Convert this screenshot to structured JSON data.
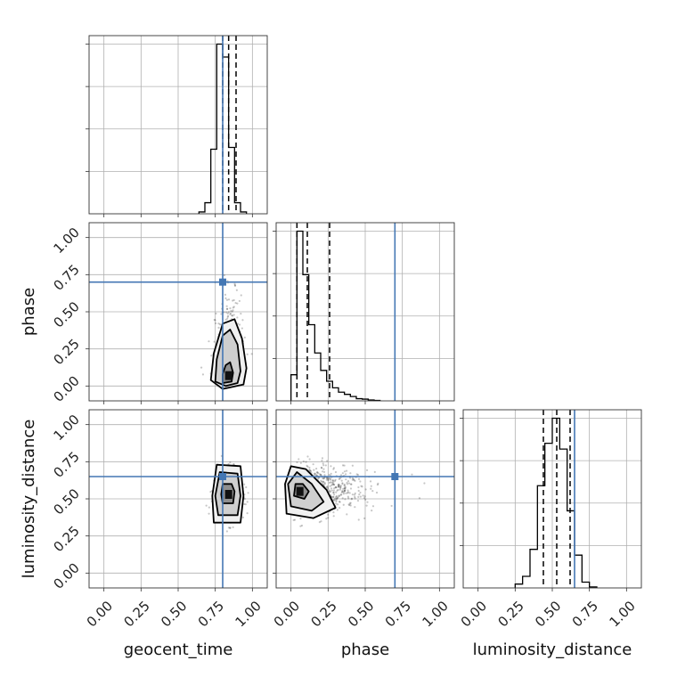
{
  "chart_data": {
    "type": "corner",
    "parameters": [
      "geocent_time",
      "phase",
      "luminosity_distance"
    ],
    "truths": [
      0.8,
      0.7,
      0.65
    ],
    "truth_color": "#4477b4",
    "contour_color": "#000000",
    "quantile_line_style": "dashed",
    "grid": true,
    "axis_ranges": {
      "geocent_time": [
        -0.1,
        1.1
      ],
      "phase": [
        -0.1,
        1.1
      ],
      "luminosity_distance": [
        -0.1,
        1.1
      ]
    },
    "ticks": [
      0.0,
      0.25,
      0.5,
      0.75,
      1.0
    ],
    "tick_labels": [
      "0.00",
      "0.25",
      "0.50",
      "0.75",
      "1.00"
    ],
    "histograms": [
      {
        "parameter": "geocent_time",
        "bin_edges": [
          0.64,
          0.68,
          0.72,
          0.76,
          0.8,
          0.84,
          0.88,
          0.92,
          0.96
        ],
        "counts": [
          0.01,
          0.06,
          0.35,
          0.92,
          0.85,
          0.36,
          0.06,
          0.01
        ],
        "quantiles": [
          0.8,
          0.84,
          0.89
        ]
      },
      {
        "parameter": "phase",
        "bin_edges": [
          0.0,
          0.04,
          0.08,
          0.12,
          0.16,
          0.2,
          0.24,
          0.28,
          0.32,
          0.36,
          0.4,
          0.44,
          0.48,
          0.52,
          0.56,
          0.6
        ],
        "counts": [
          0.12,
          0.78,
          0.58,
          0.35,
          0.22,
          0.14,
          0.09,
          0.06,
          0.04,
          0.03,
          0.02,
          0.01,
          0.008,
          0.004,
          0.002
        ],
        "quantiles": [
          0.04,
          0.11,
          0.26
        ]
      },
      {
        "parameter": "luminosity_distance",
        "bin_edges": [
          0.25,
          0.3,
          0.35,
          0.4,
          0.45,
          0.5,
          0.55,
          0.6,
          0.65,
          0.7,
          0.75,
          0.8
        ],
        "counts": [
          0.02,
          0.06,
          0.2,
          0.53,
          0.75,
          0.88,
          0.72,
          0.4,
          0.17,
          0.03,
          0.005
        ],
        "quantiles": [
          0.44,
          0.53,
          0.62
        ]
      }
    ],
    "scatter_panels": [
      {
        "x": "geocent_time",
        "y": "phase",
        "peak": [
          0.84,
          0.07
        ],
        "contours": [
          {
            "level": "1sigma",
            "points": [
              [
                0.8,
                0.02
              ],
              [
                0.86,
                0.03
              ],
              [
                0.87,
                0.09
              ],
              [
                0.85,
                0.16
              ],
              [
                0.82,
                0.14
              ],
              [
                0.8,
                0.08
              ]
            ]
          },
          {
            "level": "2sigma",
            "points": [
              [
                0.75,
                0.03
              ],
              [
                0.82,
                0.0
              ],
              [
                0.9,
                0.02
              ],
              [
                0.92,
                0.1
              ],
              [
                0.9,
                0.28
              ],
              [
                0.85,
                0.38
              ],
              [
                0.8,
                0.34
              ],
              [
                0.76,
                0.18
              ]
            ]
          },
          {
            "level": "3sigma",
            "points": [
              [
                0.72,
                0.04
              ],
              [
                0.8,
                -0.02
              ],
              [
                0.94,
                0.01
              ],
              [
                0.96,
                0.12
              ],
              [
                0.93,
                0.32
              ],
              [
                0.88,
                0.45
              ],
              [
                0.8,
                0.42
              ],
              [
                0.74,
                0.22
              ]
            ]
          }
        ]
      },
      {
        "x": "geocent_time",
        "y": "luminosity_distance",
        "peak": [
          0.84,
          0.53
        ],
        "contours": [
          {
            "level": "1sigma",
            "points": [
              [
                0.8,
                0.47
              ],
              [
                0.87,
                0.47
              ],
              [
                0.88,
                0.55
              ],
              [
                0.86,
                0.6
              ],
              [
                0.8,
                0.6
              ],
              [
                0.79,
                0.53
              ]
            ]
          },
          {
            "level": "2sigma",
            "points": [
              [
                0.77,
                0.39
              ],
              [
                0.9,
                0.39
              ],
              [
                0.92,
                0.52
              ],
              [
                0.9,
                0.67
              ],
              [
                0.78,
                0.68
              ],
              [
                0.75,
                0.52
              ]
            ]
          },
          {
            "level": "3sigma",
            "points": [
              [
                0.74,
                0.34
              ],
              [
                0.92,
                0.34
              ],
              [
                0.94,
                0.52
              ],
              [
                0.92,
                0.72
              ],
              [
                0.76,
                0.73
              ],
              [
                0.73,
                0.52
              ]
            ]
          }
        ]
      },
      {
        "x": "phase",
        "y": "luminosity_distance",
        "peak": [
          0.06,
          0.55
        ],
        "contours": [
          {
            "level": "1sigma",
            "points": [
              [
                0.02,
                0.52
              ],
              [
                0.09,
                0.5
              ],
              [
                0.12,
                0.55
              ],
              [
                0.08,
                0.6
              ],
              [
                0.03,
                0.6
              ]
            ]
          },
          {
            "level": "2sigma",
            "points": [
              [
                0.0,
                0.45
              ],
              [
                0.14,
                0.42
              ],
              [
                0.22,
                0.48
              ],
              [
                0.14,
                0.6
              ],
              [
                0.04,
                0.68
              ],
              [
                -0.02,
                0.6
              ]
            ]
          },
          {
            "level": "3sigma",
            "points": [
              [
                -0.03,
                0.4
              ],
              [
                0.15,
                0.37
              ],
              [
                0.3,
                0.44
              ],
              [
                0.24,
                0.56
              ],
              [
                0.1,
                0.7
              ],
              [
                0.0,
                0.72
              ],
              [
                -0.04,
                0.6
              ]
            ]
          }
        ]
      }
    ]
  }
}
